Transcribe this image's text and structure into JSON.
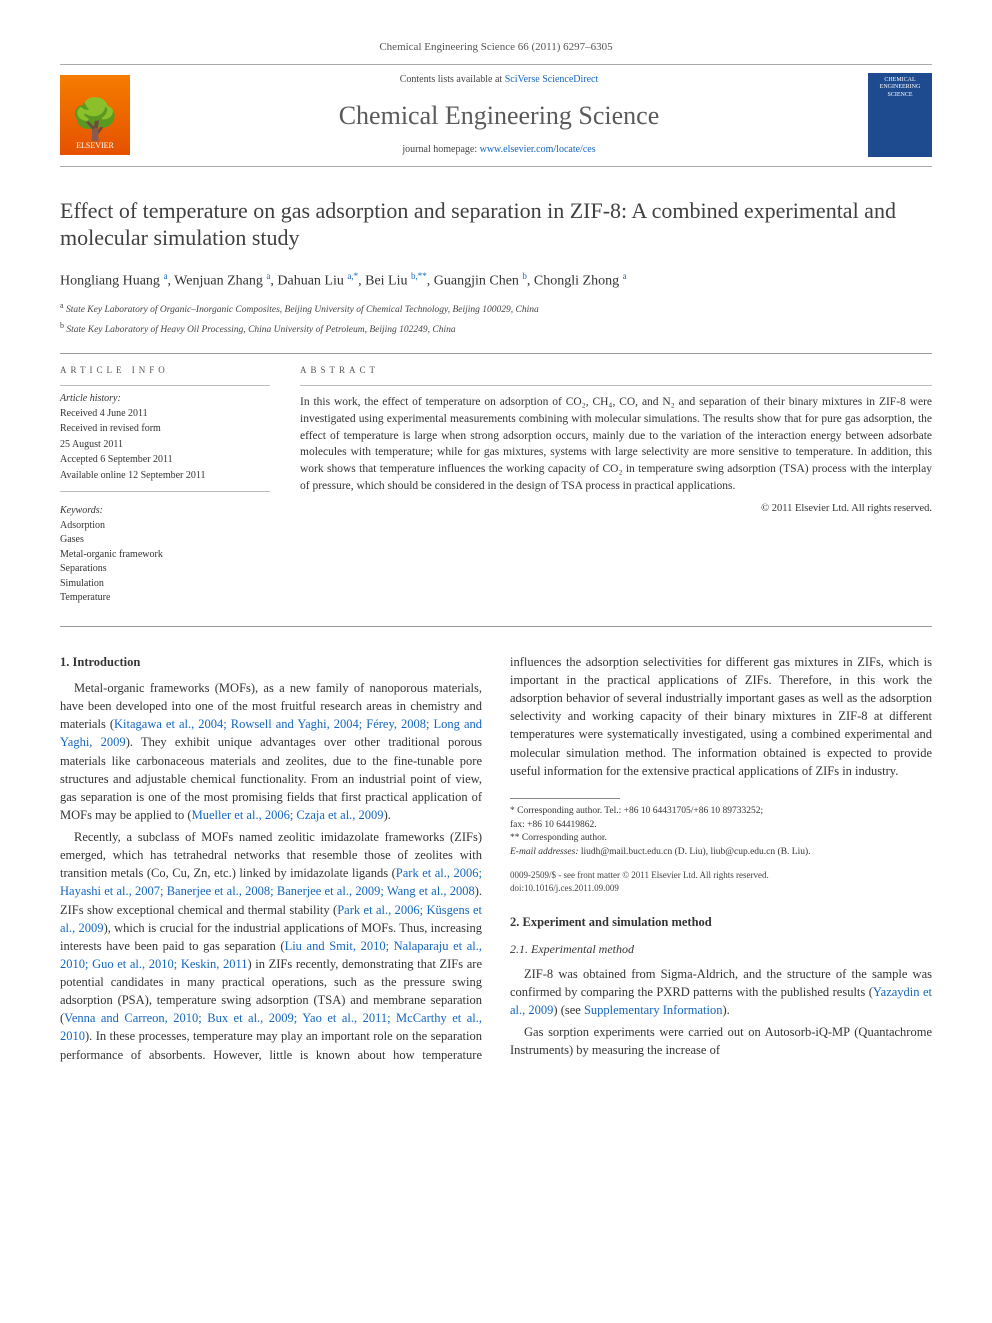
{
  "header": {
    "citation": "Chemical Engineering Science 66 (2011) 6297–6305",
    "contents_prefix": "Contents lists available at ",
    "contents_link_text": "SciVerse ScienceDirect",
    "journal_name": "Chemical Engineering Science",
    "homepage_prefix": "journal homepage: ",
    "homepage_link": "www.elsevier.com/locate/ces",
    "elsevier_label": "ELSEVIER",
    "cover_text": "CHEMICAL ENGINEERING SCIENCE"
  },
  "title": "Effect of temperature on gas adsorption and separation in ZIF-8: A combined experimental and molecular simulation study",
  "authors_html": "Hongliang Huang <sup class='sup'>a</sup>, Wenjuan Zhang <sup class='sup'>a</sup>, Dahuan Liu <sup class='sup'>a,*</sup>, Bei Liu <sup class='sup'>b,**</sup>, Guangjin Chen <sup class='sup'>b</sup>, Chongli Zhong <sup class='sup'>a</sup>",
  "affiliations": [
    {
      "sup": "a",
      "text": "State Key Laboratory of Organic–Inorganic Composites, Beijing University of Chemical Technology, Beijing 100029, China"
    },
    {
      "sup": "b",
      "text": "State Key Laboratory of Heavy Oil Processing, China University of Petroleum, Beijing 102249, China"
    }
  ],
  "article_info": {
    "heading": "ARTICLE INFO",
    "history_label": "Article history:",
    "history": [
      "Received 4 June 2011",
      "Received in revised form",
      "25 August 2011",
      "Accepted 6 September 2011",
      "Available online 12 September 2011"
    ],
    "keywords_label": "Keywords:",
    "keywords": [
      "Adsorption",
      "Gases",
      "Metal-organic framework",
      "Separations",
      "Simulation",
      "Temperature"
    ]
  },
  "abstract": {
    "heading": "ABSTRACT",
    "text": "In this work, the effect of temperature on adsorption of CO₂, CH₄, CO, and N₂ and separation of their binary mixtures in ZIF-8 were investigated using experimental measurements combining with molecular simulations. The results show that for pure gas adsorption, the effect of temperature is large when strong adsorption occurs, mainly due to the variation of the interaction energy between adsorbate molecules with temperature; while for gas mixtures, systems with large selectivity are more sensitive to temperature. In addition, this work shows that temperature influences the working capacity of CO₂ in temperature swing adsorption (TSA) process with the interplay of pressure, which should be considered in the design of TSA process in practical applications.",
    "copyright": "© 2011 Elsevier Ltd. All rights reserved."
  },
  "body": {
    "sec1_h": "1. Introduction",
    "p1": "Metal-organic frameworks (MOFs), as a new family of nanoporous materials, have been developed into one of the most fruitful research areas in chemistry and materials (",
    "p1_refs": "Kitagawa et al., 2004; Rowsell and Yaghi, 2004; Férey, 2008; Long and Yaghi, 2009",
    "p1_tail": "). They exhibit unique advantages over other traditional porous materials like carbonaceous materials and zeolites, due to the fine-tunable pore structures and adjustable chemical functionality. From an industrial point of view, gas separation is one of the most promising fields that first practical application of MOFs may be applied to (",
    "p1_refs2": "Mueller et al., 2006; Czaja et al., 2009",
    "p1_tail2": ").",
    "p2": "Recently, a subclass of MOFs named zeolitic imidazolate frameworks (ZIFs) emerged, which has tetrahedral networks that resemble those of zeolites with transition metals (Co, Cu, Zn, etc.) linked by imidazolate ligands (",
    "p2_refs": "Park et al., 2006; Hayashi et al., 2007; Banerjee et al., 2008; Banerjee et al., 2009; Wang et al., 2008",
    "p2_mid": "). ZIFs show exceptional chemical and thermal stability (",
    "p2_refs2": "Park et al., 2006; Küsgens et al., 2009",
    "p2_mid2": "), which is crucial for the industrial applications of MOFs. Thus, increasing interests have been paid to gas separation (",
    "p2_refs3": "Liu and Smit, 2010; Nalaparaju et al., 2010; Guo et al., 2010; Keskin, 2011",
    "p2_tail": ") in ZIFs recently, demonstrating that ZIFs are potential candidates in many practical operations, such as the pressure swing adsorption (PSA), temperature swing adsorption (TSA) and membrane separation (",
    "p2_refs4": "Venna and Carreon, 2010; Bux et al., 2009; Yao et al., 2011; McCarthy et al., 2010",
    "p2_tail2": "). In these processes, temperature may play an important role on the separation performance of absorbents. However, little is known about how temperature influences the adsorption selectivities for different gas mixtures in ZIFs, which is important in the practical applications of ZIFs. Therefore, in this work the adsorption behavior of several industrially important gases as well as the adsorption selectivity and working capacity of their binary mixtures in ZIF-8 at different temperatures were systematically investigated, using a combined experimental and molecular simulation method. The information obtained is expected to provide useful information for the extensive practical applications of ZIFs in industry.",
    "sec2_h": "2. Experiment and simulation method",
    "sec21_h": "2.1. Experimental method",
    "p3": "ZIF-8 was obtained from Sigma-Aldrich, and the structure of the sample was confirmed by comparing the PXRD patterns with the published results (",
    "p3_ref": "Yazaydin et al., 2009",
    "p3_mid": ") (see ",
    "p3_ref2": "Supplementary Information",
    "p3_tail": ").",
    "p4": "Gas sorption experiments were carried out on Autosorb-iQ-MP (Quantachrome Instruments) by measuring the increase of"
  },
  "footnotes": {
    "corr1_label": "* Corresponding author. Tel.: +86 10 64431705/+86 10 89733252;",
    "corr1_fax": "fax: +86 10 64419862.",
    "corr2_label": "** Corresponding author.",
    "email_label": "E-mail addresses:",
    "email_text": " liudh@mail.buct.edu.cn (D. Liu), liub@cup.edu.cn (B. Liu).",
    "issn": "0009-2509/$ - see front matter © 2011 Elsevier Ltd. All rights reserved.",
    "doi": "doi:10.1016/j.ces.2011.09.009"
  },
  "colors": {
    "link": "#1566c0",
    "elsevier_bg": "#e65100",
    "cover_bg": "#1e4b8f",
    "text": "#333333",
    "muted": "#555555"
  },
  "typography": {
    "body_pt": 12.5,
    "title_pt": 22,
    "journal_pt": 26,
    "abstract_pt": 11.5,
    "info_pt": 10,
    "footnote_pt": 9.5
  }
}
